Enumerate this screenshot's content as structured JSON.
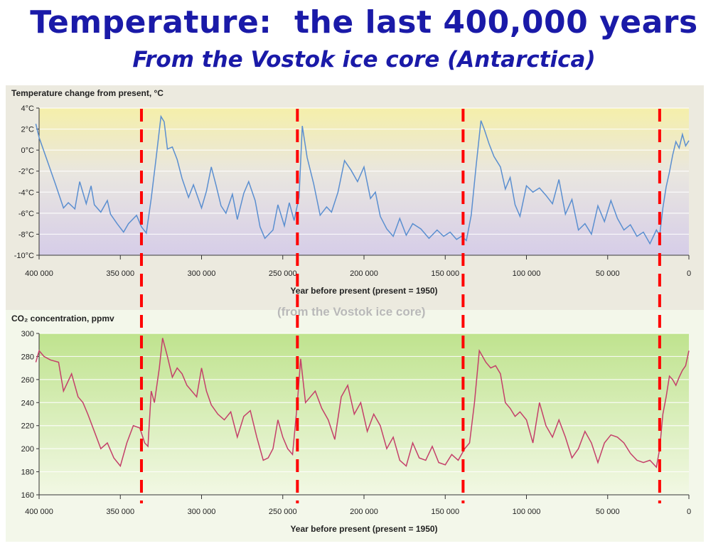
{
  "slide": {
    "title": "Temperature:  the last 400,000 years",
    "subtitle": "From the Vostok ice core (Antarctica)"
  },
  "colors": {
    "title": "#1a1aa8",
    "temperature_line": "#5b8fd0",
    "co2_line": "#c4406a",
    "marker": "#ff0000"
  },
  "chart_data": [
    {
      "type": "line",
      "title": "Temperature change from present, °C",
      "xlabel": "Year before present (present = 1950)",
      "ylabel": "",
      "xlim": [
        400000,
        0
      ],
      "ylim": [
        -10,
        4
      ],
      "x_ticks": [
        400000,
        350000,
        300000,
        250000,
        200000,
        150000,
        100000,
        50000,
        0
      ],
      "x_tick_labels": [
        "400 000",
        "350 000",
        "300 000",
        "250 000",
        "200 000",
        "150 000",
        "100 000",
        "50 000",
        "0"
      ],
      "y_ticks": [
        4,
        2,
        0,
        -2,
        -4,
        -6,
        -8,
        -10
      ],
      "y_tick_labels": [
        "4°C",
        "2°C",
        "0°C",
        "-2°C",
        "-4°C",
        "-6°C",
        "-8°C",
        "-10°C"
      ],
      "grid": true,
      "series": [
        {
          "x": [
            402000,
            400000,
            395000,
            390000,
            385000,
            382000,
            378000,
            375000,
            371000,
            368000,
            366000,
            362000,
            358000,
            356000,
            352000,
            348000,
            345000,
            340000,
            337000,
            334000,
            331000,
            328000,
            325000,
            323000,
            321000,
            318000,
            315000,
            312000,
            308000,
            305000,
            300000,
            297000,
            294000,
            291000,
            288000,
            285000,
            281000,
            278000,
            274000,
            271000,
            267000,
            264000,
            261000,
            256000,
            253000,
            249000,
            246000,
            243000,
            240000,
            238000,
            235000,
            231000,
            227000,
            223000,
            220000,
            216000,
            212000,
            208000,
            204000,
            200000,
            196000,
            193000,
            190000,
            186000,
            182000,
            178000,
            174000,
            170000,
            165000,
            160000,
            155000,
            151000,
            147000,
            143000,
            140000,
            137000,
            134000,
            131000,
            128000,
            126000,
            123000,
            120000,
            116000,
            113000,
            110000,
            107000,
            104000,
            100000,
            96000,
            92000,
            88000,
            84000,
            80000,
            76000,
            72000,
            68000,
            64000,
            60000,
            56000,
            52000,
            48000,
            44000,
            40000,
            36000,
            32000,
            28000,
            24000,
            20000,
            18000,
            16000,
            14000,
            12000,
            10000,
            8000,
            6000,
            4000,
            2000,
            0
          ],
          "y": [
            2.5,
            1.2,
            -1.0,
            -3.2,
            -5.5,
            -5.0,
            -5.6,
            -3.0,
            -5.1,
            -3.4,
            -5.2,
            -5.9,
            -4.8,
            -6.1,
            -7.0,
            -7.8,
            -7.0,
            -6.2,
            -7.3,
            -7.9,
            -4.6,
            -0.8,
            3.2,
            2.7,
            0.1,
            0.3,
            -0.9,
            -2.7,
            -4.5,
            -3.3,
            -5.5,
            -3.9,
            -1.6,
            -3.4,
            -5.3,
            -6.0,
            -4.2,
            -6.6,
            -4.1,
            -3.0,
            -4.8,
            -7.3,
            -8.4,
            -7.6,
            -5.2,
            -7.2,
            -5.0,
            -6.7,
            -4.5,
            2.3,
            -0.7,
            -3.2,
            -6.2,
            -5.4,
            -5.9,
            -4.0,
            -1.0,
            -1.9,
            -3.0,
            -1.6,
            -4.6,
            -4.0,
            -6.3,
            -7.5,
            -8.2,
            -6.5,
            -8.1,
            -7.0,
            -7.5,
            -8.4,
            -7.6,
            -8.2,
            -7.8,
            -8.5,
            -8.2,
            -8.6,
            -6.2,
            -1.5,
            2.8,
            2.0,
            0.6,
            -0.6,
            -1.6,
            -3.7,
            -2.6,
            -5.2,
            -6.3,
            -3.4,
            -4.0,
            -3.6,
            -4.3,
            -5.1,
            -2.8,
            -6.1,
            -4.7,
            -7.6,
            -7.0,
            -8.0,
            -5.3,
            -6.8,
            -4.8,
            -6.5,
            -7.6,
            -7.1,
            -8.2,
            -7.8,
            -8.9,
            -7.6,
            -8.1,
            -5.5,
            -3.5,
            -2.1,
            -0.5,
            0.8,
            0.2,
            1.5,
            0.4,
            0.9
          ]
        }
      ]
    },
    {
      "type": "line",
      "title": "CO₂ concentration, ppmv",
      "xlabel": "Year before present (present = 1950)",
      "ylabel": "",
      "xlim": [
        400000,
        0
      ],
      "ylim": [
        160,
        300
      ],
      "x_ticks": [
        400000,
        350000,
        300000,
        250000,
        200000,
        150000,
        100000,
        50000,
        0
      ],
      "x_tick_labels": [
        "400 000",
        "350 000",
        "300 000",
        "250 000",
        "200 000",
        "150 000",
        "100 000",
        "50 000",
        "0"
      ],
      "y_ticks": [
        300,
        280,
        260,
        240,
        220,
        200,
        180,
        160
      ],
      "y_tick_labels": [
        "300",
        "280",
        "260",
        "240",
        "220",
        "200",
        "180",
        "160"
      ],
      "grid": true,
      "series": [
        {
          "x": [
            402000,
            400000,
            397000,
            393000,
            388000,
            385000,
            380000,
            376000,
            373000,
            370000,
            366000,
            362000,
            358000,
            354000,
            350000,
            346000,
            342000,
            338000,
            335000,
            333000,
            331000,
            329000,
            326000,
            324000,
            321000,
            318000,
            315000,
            312000,
            309000,
            306000,
            303000,
            300000,
            297000,
            294000,
            290000,
            286000,
            282000,
            278000,
            274000,
            270000,
            266000,
            262000,
            259000,
            256000,
            253000,
            250000,
            247000,
            244000,
            241000,
            239000,
            236000,
            233000,
            230000,
            226000,
            222000,
            218000,
            214000,
            210000,
            206000,
            202000,
            198000,
            194000,
            190000,
            186000,
            182000,
            178000,
            174000,
            170000,
            166000,
            162000,
            158000,
            154000,
            150000,
            146000,
            142000,
            138000,
            135000,
            132000,
            129000,
            127000,
            125000,
            122000,
            119000,
            116000,
            113000,
            110000,
            107000,
            104000,
            100000,
            96000,
            92000,
            88000,
            84000,
            80000,
            76000,
            72000,
            68000,
            64000,
            60000,
            56000,
            52000,
            48000,
            44000,
            40000,
            36000,
            32000,
            28000,
            24000,
            20000,
            18000,
            16000,
            14000,
            12000,
            10000,
            8000,
            6000,
            4000,
            2000,
            0
          ],
          "y": [
            275,
            285,
            280,
            277,
            275,
            250,
            265,
            245,
            240,
            230,
            215,
            200,
            205,
            192,
            185,
            205,
            220,
            218,
            205,
            202,
            250,
            240,
            270,
            296,
            280,
            262,
            270,
            265,
            255,
            250,
            245,
            270,
            250,
            238,
            230,
            225,
            232,
            210,
            228,
            233,
            210,
            190,
            192,
            200,
            225,
            210,
            200,
            195,
            240,
            278,
            240,
            245,
            250,
            235,
            225,
            208,
            245,
            255,
            230,
            240,
            215,
            230,
            220,
            200,
            210,
            190,
            185,
            205,
            192,
            190,
            202,
            188,
            186,
            195,
            190,
            200,
            205,
            240,
            285,
            280,
            275,
            270,
            272,
            265,
            240,
            235,
            228,
            232,
            225,
            205,
            240,
            220,
            210,
            225,
            210,
            192,
            200,
            215,
            205,
            188,
            205,
            212,
            210,
            205,
            196,
            190,
            188,
            190,
            184,
            200,
            230,
            245,
            263,
            260,
            255,
            262,
            268,
            272,
            285
          ]
        }
      ]
    }
  ],
  "background_texts": [
    "(from the Vostok ice core)"
  ],
  "marker_lines_x": [
    337000,
    241000,
    139000,
    18000
  ]
}
